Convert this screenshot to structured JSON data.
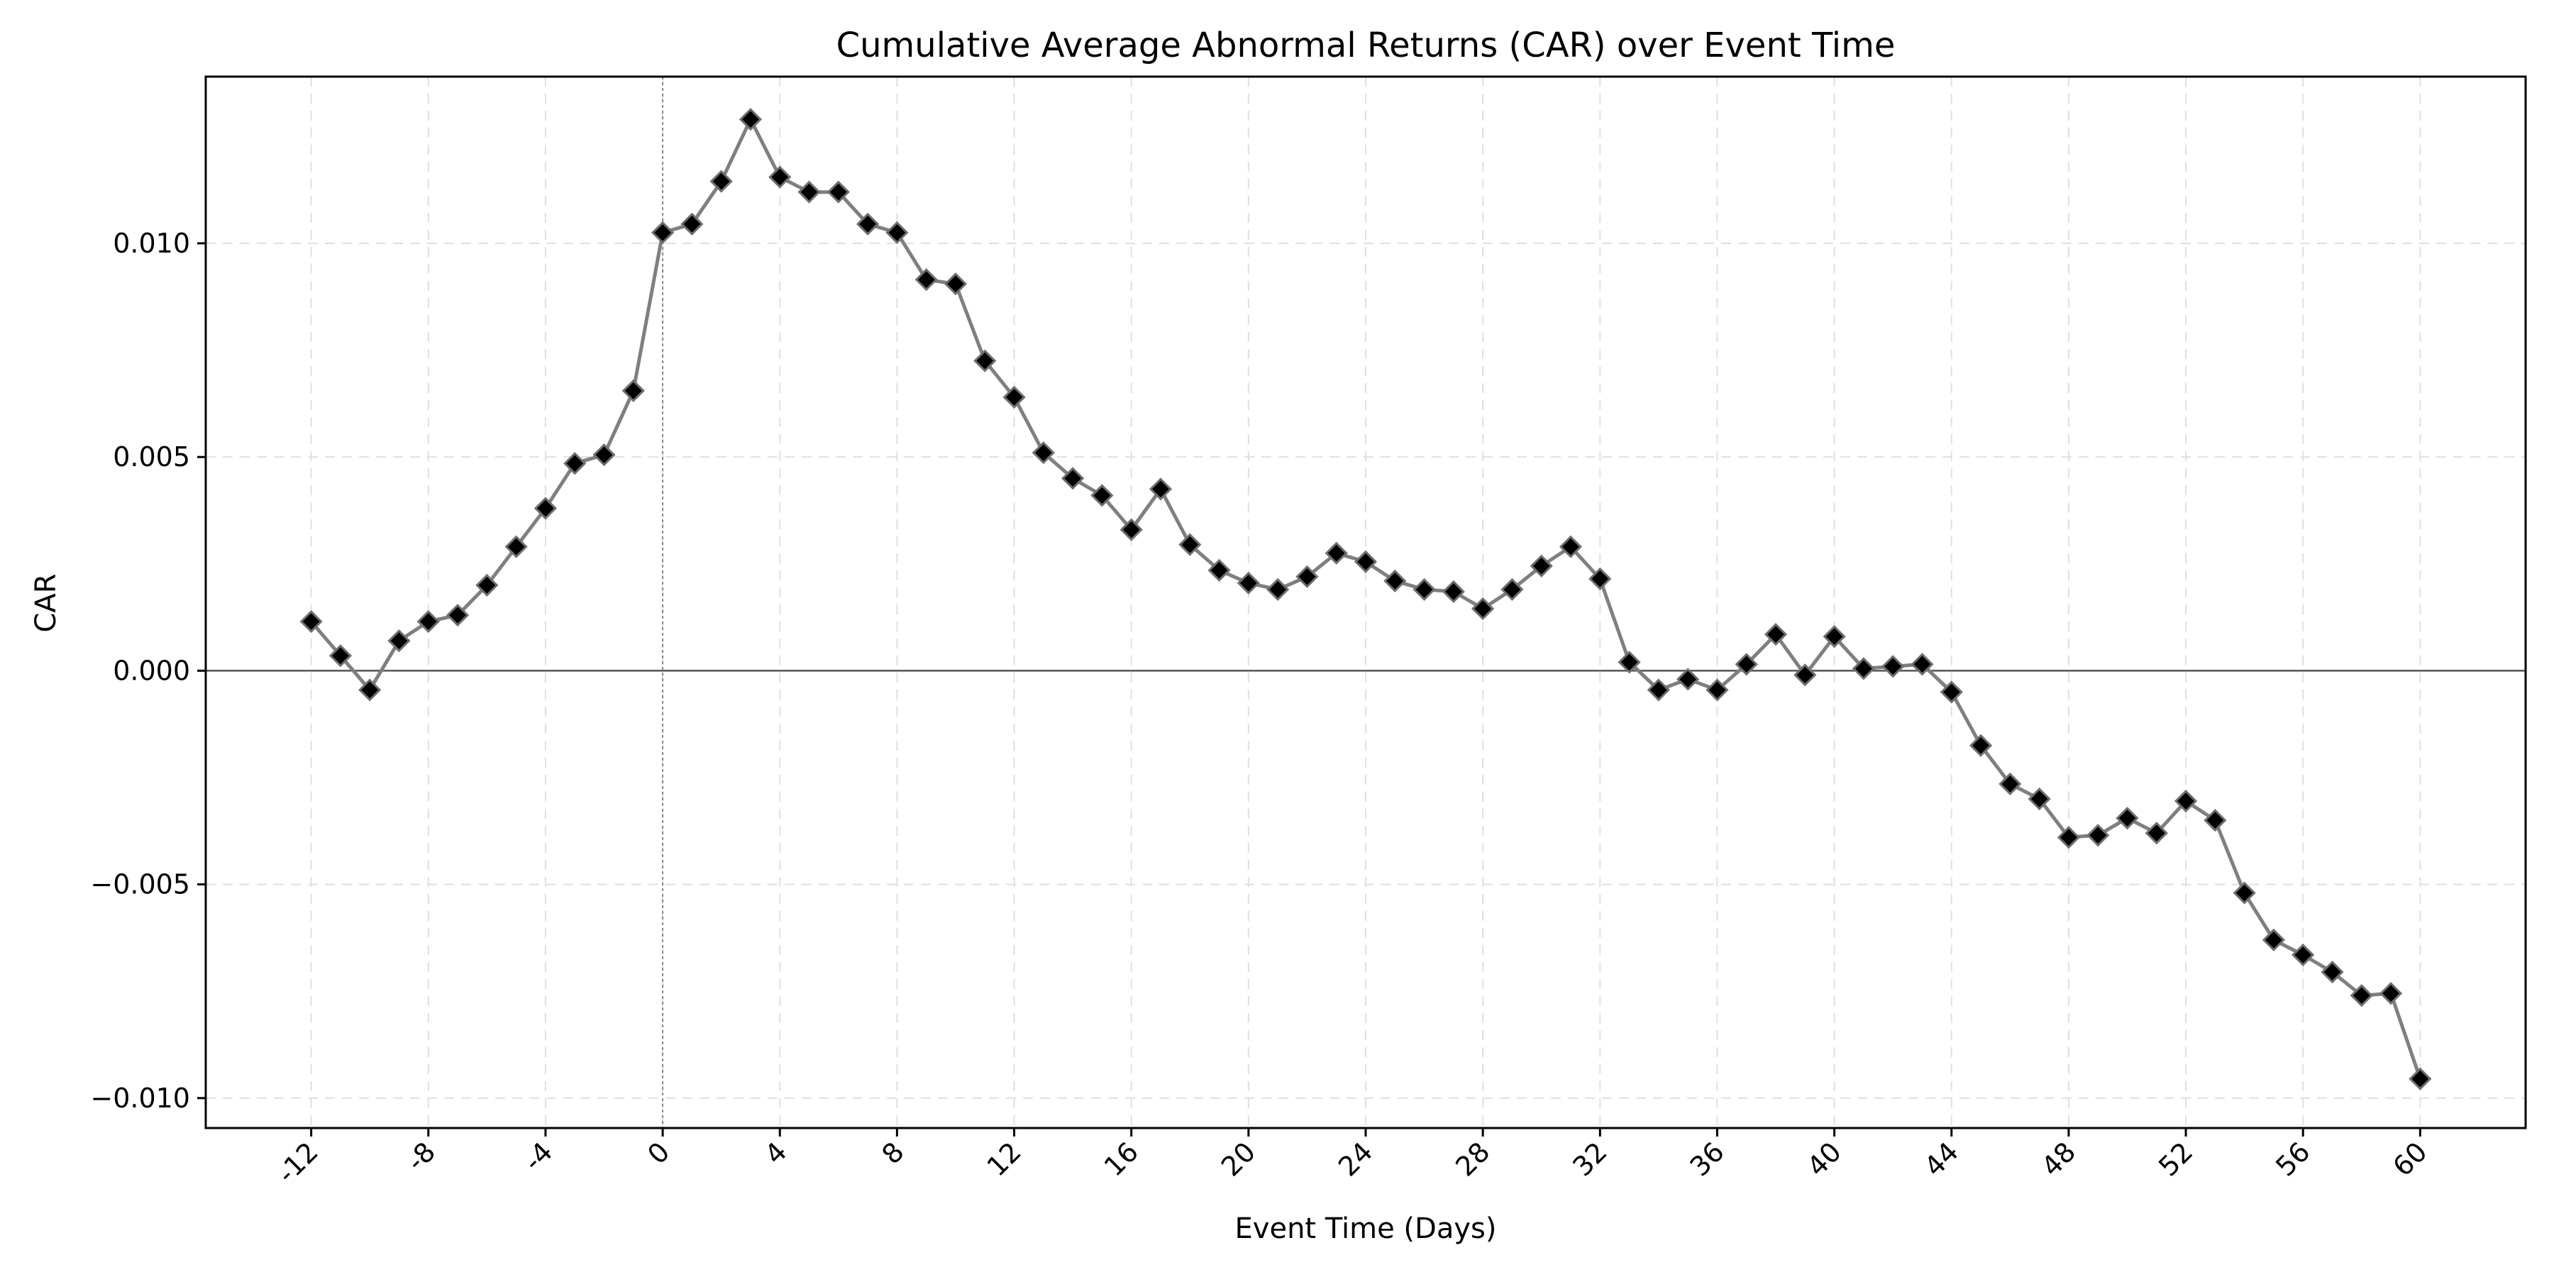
{
  "chart_data": {
    "type": "line",
    "title": "Cumulative Average Abnormal Returns (CAR) over Event Time",
    "xlabel": "Event Time (Days)",
    "ylabel": "CAR",
    "x": [
      -12,
      -11,
      -10,
      -9,
      -8,
      -7,
      -6,
      -5,
      -4,
      -3,
      -2,
      -1,
      0,
      1,
      2,
      3,
      4,
      5,
      6,
      7,
      8,
      9,
      10,
      11,
      12,
      13,
      14,
      15,
      16,
      17,
      18,
      19,
      20,
      21,
      22,
      23,
      24,
      25,
      26,
      27,
      28,
      29,
      30,
      31,
      32,
      33,
      34,
      35,
      36,
      37,
      38,
      39,
      40,
      41,
      42,
      43,
      44,
      45,
      46,
      47,
      48,
      49,
      50,
      51,
      52,
      53,
      54,
      55,
      56,
      57,
      58,
      59,
      60
    ],
    "series": [
      {
        "values": [
          0.00115,
          0.00035,
          -0.00045,
          0.0007,
          0.00115,
          0.0013,
          0.002,
          0.0029,
          0.0038,
          0.00485,
          0.00505,
          0.00655,
          0.01025,
          0.01045,
          0.01145,
          0.0129,
          0.01155,
          0.0112,
          0.0112,
          0.01045,
          0.01025,
          0.00915,
          0.00905,
          0.00725,
          0.0064,
          0.0051,
          0.0045,
          0.0041,
          0.0033,
          0.00425,
          0.00295,
          0.00235,
          0.00205,
          0.0019,
          0.0022,
          0.00275,
          0.00255,
          0.0021,
          0.0019,
          0.00185,
          0.00145,
          0.0019,
          0.00245,
          0.0029,
          0.00215,
          0.0002,
          -0.00045,
          -0.0002,
          -0.00045,
          0.00015,
          0.00085,
          -0.0001,
          0.0008,
          5e-05,
          0.0001,
          0.00015,
          -0.0005,
          -0.00175,
          -0.00265,
          -0.003,
          -0.0039,
          -0.00385,
          -0.00345,
          -0.0038,
          -0.00305,
          -0.0035,
          -0.0052,
          -0.0063,
          -0.00665,
          -0.00705,
          -0.0076,
          -0.00755,
          -0.00955
        ],
        "color": "#7f7f7f",
        "marker": "diamond",
        "marker_color": "#000000"
      }
    ],
    "xticks": [
      -12,
      -8,
      -4,
      0,
      4,
      8,
      12,
      16,
      20,
      24,
      28,
      32,
      36,
      40,
      44,
      48,
      52,
      56,
      60
    ],
    "xtick_labels": [
      "-12",
      "-8",
      "-4",
      "0",
      "4",
      "8",
      "12",
      "16",
      "20",
      "24",
      "28",
      "32",
      "36",
      "40",
      "44",
      "48",
      "52",
      "56",
      "60"
    ],
    "yticks": [
      -0.01,
      -0.005,
      0,
      0.005,
      0.01
    ],
    "ytick_labels": [
      "−0.010",
      "−0.005",
      "0.000",
      "0.005",
      "0.010"
    ],
    "xlim": [
      -15.6,
      63.6
    ],
    "ylim": [
      -0.0107,
      0.0139
    ],
    "grid": true,
    "reference_lines": [
      {
        "axis": "y",
        "value": 0,
        "style": "solid",
        "color": "#555555"
      },
      {
        "axis": "x",
        "value": 0,
        "style": "dotted",
        "color": "#888888"
      }
    ]
  }
}
